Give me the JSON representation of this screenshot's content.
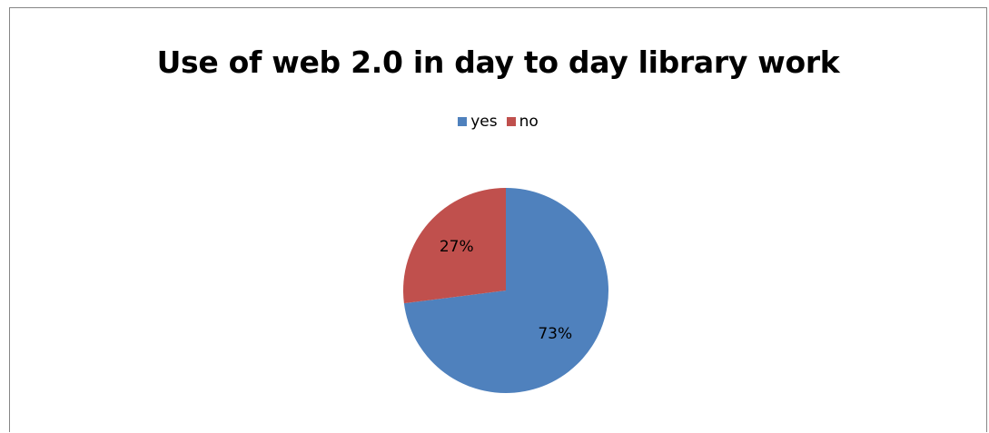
{
  "chart_data": {
    "type": "pie",
    "title": "Use of web 2.0 in day to day library work",
    "legend_position": "top",
    "slices": [
      {
        "name": "yes",
        "value": 73,
        "label": "73%",
        "color": "#4F81BD"
      },
      {
        "name": "no",
        "value": 27,
        "label": "27%",
        "color": "#C0504D"
      }
    ]
  }
}
